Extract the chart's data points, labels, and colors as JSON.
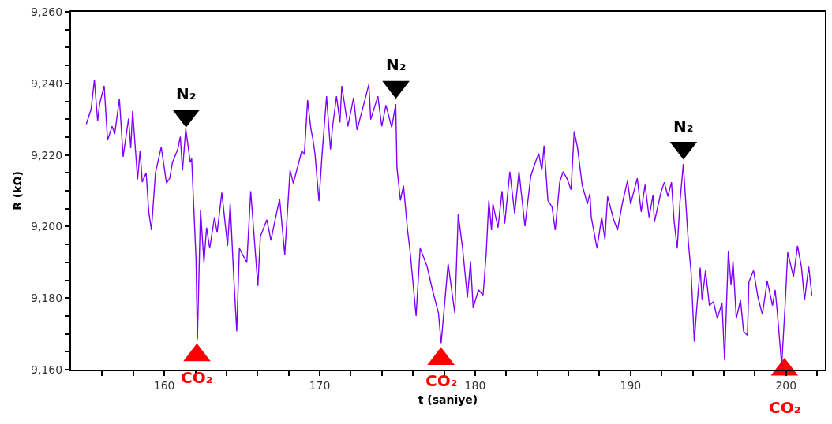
{
  "chart_data": {
    "type": "line",
    "xlabel": "t (saniye)",
    "ylabel": "R (kΩ)",
    "marker": "none",
    "line_style": "solid",
    "xlim": [
      154,
      202.5
    ],
    "ylim": [
      9160,
      9260
    ],
    "xticks": [
      {
        "value": 156,
        "label": null
      },
      {
        "value": 158,
        "label": null
      },
      160,
      {
        "value": 162,
        "label": null
      },
      {
        "value": 164,
        "label": null
      },
      {
        "value": 166,
        "label": null
      },
      {
        "value": 168,
        "label": null
      },
      170,
      {
        "value": 172,
        "label": null
      },
      {
        "value": 174,
        "label": null
      },
      {
        "value": 176,
        "label": null
      },
      {
        "value": 178,
        "label": null
      },
      180,
      {
        "value": 182,
        "label": null
      },
      {
        "value": 184,
        "label": null
      },
      {
        "value": 186,
        "label": null
      },
      {
        "value": 188,
        "label": null
      },
      190,
      {
        "value": 192,
        "label": null
      },
      {
        "value": 194,
        "label": null
      },
      {
        "value": 196,
        "label": null
      },
      {
        "value": 198,
        "label": null
      },
      200,
      {
        "value": 202,
        "label": null
      }
    ],
    "yticks": [
      {
        "value": 9160,
        "label": "9,160"
      },
      {
        "value": 9165,
        "label": null
      },
      {
        "value": 9170,
        "label": null
      },
      {
        "value": 9175,
        "label": null
      },
      {
        "value": 9180,
        "label": "9,180"
      },
      {
        "value": 9185,
        "label": null
      },
      {
        "value": 9190,
        "label": null
      },
      {
        "value": 9195,
        "label": null
      },
      {
        "value": 9200,
        "label": "9,200"
      },
      {
        "value": 9205,
        "label": null
      },
      {
        "value": 9210,
        "label": null
      },
      {
        "value": 9215,
        "label": null
      },
      {
        "value": 9220,
        "label": "9,220"
      },
      {
        "value": 9225,
        "label": null
      },
      {
        "value": 9230,
        "label": null
      },
      {
        "value": 9235,
        "label": null
      },
      {
        "value": 9240,
        "label": "9,240"
      },
      {
        "value": 9245,
        "label": null
      },
      {
        "value": 9250,
        "label": null
      },
      {
        "value": 9255,
        "label": null
      },
      {
        "value": 9260,
        "label": "9,260"
      }
    ],
    "series": [
      {
        "type": "scatter",
        "name": "N₂",
        "color": "#000000",
        "marker": "triangle",
        "x": [
          161.4,
          174.9,
          193.4
        ],
        "values": [
          9231,
          9239,
          9222
        ]
      },
      {
        "type": "scatter",
        "name": "CO₂",
        "color": "#ff0000",
        "marker": "triangle",
        "x": [
          162.1,
          177.8,
          199.9
        ],
        "values": [
          9164,
          9163,
          9160
        ]
      },
      {
        "color": "#8000ff",
        "x": [
          154.98,
          155.29,
          155.5,
          155.71,
          155.84,
          156.13,
          156.35,
          156.64,
          156.81,
          157.11,
          157.35,
          157.7,
          157.84,
          157.96,
          158.28,
          158.44,
          158.58,
          158.83,
          159.0,
          159.17,
          159.43,
          159.8,
          160.14,
          160.35,
          160.52,
          160.86,
          161.03,
          161.17,
          161.38,
          161.67,
          161.76,
          162.04,
          162.13,
          162.33,
          162.55,
          162.72,
          162.92,
          163.23,
          163.4,
          163.7,
          164.07,
          164.24,
          164.45,
          164.66,
          164.83,
          165.31,
          165.56,
          166.02,
          166.18,
          166.6,
          166.86,
          167.11,
          167.42,
          167.75,
          168.09,
          168.3,
          168.85,
          169.01,
          169.22,
          169.43,
          169.56,
          169.7,
          169.95,
          170.15,
          170.44,
          170.69,
          170.83,
          171.08,
          171.3,
          171.42,
          171.81,
          172.18,
          172.4,
          172.86,
          173.16,
          173.28,
          173.74,
          173.99,
          174.26,
          174.63,
          174.89,
          174.97,
          175.19,
          175.39,
          175.65,
          175.81,
          176.2,
          176.46,
          176.91,
          177.25,
          177.64,
          177.81,
          178.26,
          178.69,
          178.91,
          179.19,
          179.5,
          179.7,
          179.87,
          180.21,
          180.51,
          180.71,
          180.88,
          181.05,
          181.14,
          181.47,
          181.73,
          181.9,
          182.23,
          182.54,
          182.82,
          183.2,
          183.58,
          183.89,
          184.09,
          184.29,
          184.43,
          184.68,
          184.94,
          185.15,
          185.44,
          185.65,
          185.9,
          186.17,
          186.37,
          186.59,
          186.88,
          187.22,
          187.38,
          187.47,
          187.84,
          188.14,
          188.35,
          188.52,
          188.91,
          189.16,
          189.46,
          189.8,
          190.0,
          190.43,
          190.68,
          190.93,
          191.19,
          191.44,
          191.53,
          191.95,
          192.17,
          192.4,
          192.63,
          192.79,
          193.0,
          193.18,
          193.39,
          193.72,
          193.89,
          194.1,
          194.23,
          194.48,
          194.6,
          194.82,
          195.07,
          195.33,
          195.58,
          195.88,
          196.05,
          196.29,
          196.46,
          196.59,
          196.8,
          197.07,
          197.27,
          197.52,
          197.61,
          197.91,
          198.2,
          198.48,
          198.79,
          199.13,
          199.3,
          199.43,
          199.72,
          199.94,
          200.11,
          200.48,
          200.74,
          200.99,
          201.19,
          201.46,
          201.66
        ],
        "values": [
          9228.6,
          9232.8,
          9241.0,
          9229.5,
          9234.3,
          9239.3,
          9224.1,
          9228.0,
          9225.9,
          9235.7,
          9219.5,
          9230.2,
          9221.9,
          9232.3,
          9213.2,
          9221.2,
          9212.4,
          9215.0,
          9204.1,
          9199.0,
          9215.0,
          9222.2,
          9212.1,
          9213.5,
          9217.9,
          9221.5,
          9225.1,
          9215.7,
          9227.3,
          9217.9,
          9219.0,
          9191.0,
          9168.5,
          9204.7,
          9189.9,
          9199.7,
          9193.9,
          9202.6,
          9198.3,
          9209.5,
          9194.6,
          9206.3,
          9187.4,
          9170.7,
          9193.9,
          9189.9,
          9209.9,
          9183.4,
          9197.2,
          9201.9,
          9196.1,
          9201.5,
          9207.7,
          9192.1,
          9215.7,
          9212.1,
          9221.2,
          9220.1,
          9235.3,
          9227.3,
          9224.4,
          9220.1,
          9207.1,
          9220.1,
          9236.4,
          9221.5,
          9228.0,
          9236.4,
          9229.1,
          9239.3,
          9228.0,
          9236.0,
          9227.0,
          9234.6,
          9239.7,
          9229.9,
          9236.4,
          9228.0,
          9233.9,
          9227.7,
          9234.2,
          9216.4,
          9207.3,
          9211.4,
          9199.0,
          9193.2,
          9175.0,
          9193.9,
          9188.8,
          9182.3,
          9175.8,
          9167.4,
          9189.6,
          9175.8,
          9203.4,
          9193.9,
          9180.1,
          9190.3,
          9177.2,
          9182.3,
          9180.8,
          9192.5,
          9207.3,
          9199.0,
          9206.3,
          9199.7,
          9209.9,
          9200.8,
          9215.3,
          9203.7,
          9215.3,
          9200.1,
          9214.2,
          9218.2,
          9220.4,
          9215.7,
          9222.6,
          9207.3,
          9205.5,
          9199.0,
          9212.4,
          9215.3,
          9213.5,
          9210.3,
          9226.6,
          9221.9,
          9211.7,
          9206.3,
          9209.2,
          9202.6,
          9193.9,
          9202.6,
          9196.4,
          9208.4,
          9201.9,
          9199.0,
          9206.3,
          9212.8,
          9206.3,
          9213.5,
          9204.1,
          9211.7,
          9202.6,
          9208.8,
          9201.2,
          9209.5,
          9212.4,
          9208.4,
          9212.4,
          9201.9,
          9193.9,
          9207.0,
          9217.5,
          9195.4,
          9187.4,
          9167.8,
          9175.8,
          9188.5,
          9179.4,
          9187.7,
          9177.9,
          9179.0,
          9174.3,
          9178.7,
          9162.7,
          9193.2,
          9183.7,
          9190.3,
          9174.3,
          9179.4,
          9170.7,
          9169.6,
          9184.5,
          9187.7,
          9180.1,
          9175.4,
          9184.8,
          9177.9,
          9182.3,
          9176.5,
          9161.2,
          9177.9,
          9192.8,
          9185.9,
          9194.6,
          9188.8,
          9179.4,
          9188.8,
          9180.8
        ]
      }
    ]
  }
}
